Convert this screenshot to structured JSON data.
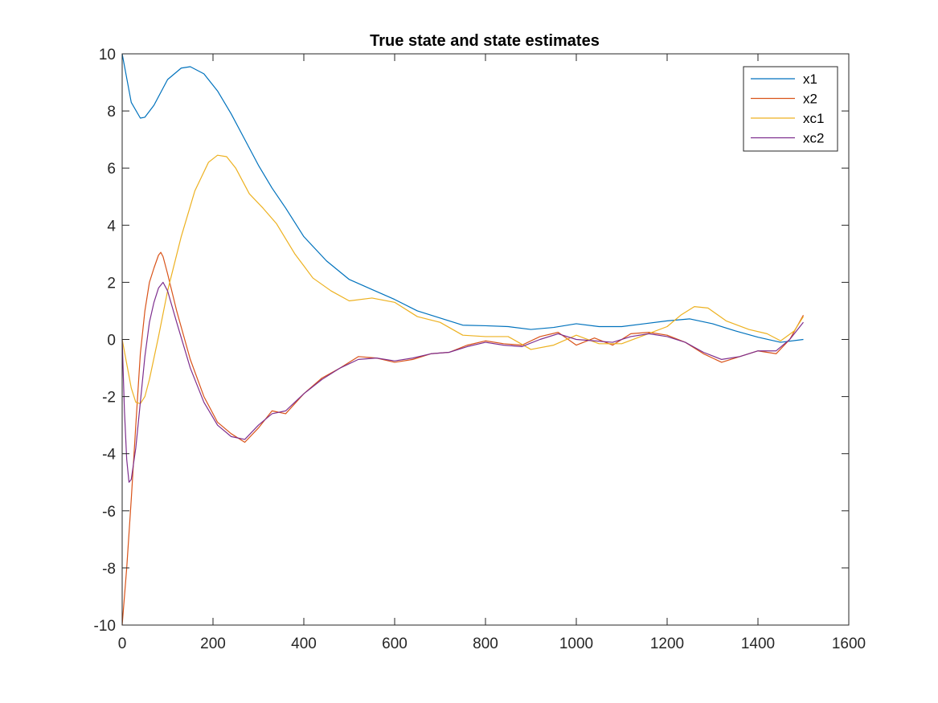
{
  "chart_data": {
    "type": "line",
    "title": "True state and state estimates",
    "xlabel": "",
    "ylabel": "",
    "xlim": [
      0,
      1600
    ],
    "ylim": [
      -10,
      10
    ],
    "xticks": [
      0,
      200,
      400,
      600,
      800,
      1000,
      1200,
      1400,
      1600
    ],
    "yticks": [
      -10,
      -8,
      -6,
      -4,
      -2,
      0,
      2,
      4,
      6,
      8,
      10
    ],
    "grid": false,
    "legend_position": "top-right",
    "series": [
      {
        "name": "x1",
        "color": "#0072BD",
        "x": [
          0,
          20,
          40,
          50,
          70,
          100,
          130,
          150,
          180,
          210,
          240,
          270,
          300,
          330,
          360,
          400,
          450,
          500,
          550,
          600,
          650,
          700,
          750,
          800,
          850,
          900,
          950,
          1000,
          1050,
          1100,
          1150,
          1200,
          1250,
          1300,
          1350,
          1400,
          1450,
          1500
        ],
        "y": [
          10,
          8.3,
          7.75,
          7.78,
          8.2,
          9.1,
          9.5,
          9.55,
          9.3,
          8.7,
          7.9,
          7.0,
          6.1,
          5.3,
          4.6,
          3.6,
          2.75,
          2.1,
          1.75,
          1.4,
          1.0,
          0.75,
          0.5,
          0.48,
          0.45,
          0.35,
          0.42,
          0.55,
          0.45,
          0.45,
          0.55,
          0.65,
          0.72,
          0.55,
          0.3,
          0.08,
          -0.1,
          0.0
        ]
      },
      {
        "name": "x2",
        "color": "#D95319",
        "x": [
          0,
          10,
          20,
          30,
          40,
          50,
          60,
          70,
          80,
          85,
          90,
          100,
          120,
          150,
          180,
          210,
          240,
          270,
          300,
          330,
          360,
          400,
          440,
          480,
          520,
          560,
          600,
          640,
          680,
          720,
          760,
          800,
          840,
          880,
          920,
          960,
          1000,
          1040,
          1080,
          1120,
          1160,
          1200,
          1240,
          1280,
          1320,
          1360,
          1400,
          1440,
          1470,
          1500
        ],
        "y": [
          -10,
          -8.0,
          -5.6,
          -3.0,
          -0.5,
          1.0,
          2.0,
          2.5,
          2.95,
          3.05,
          2.9,
          2.3,
          1.0,
          -0.7,
          -2.0,
          -2.9,
          -3.3,
          -3.6,
          -3.1,
          -2.5,
          -2.6,
          -1.9,
          -1.35,
          -1.0,
          -0.6,
          -0.65,
          -0.8,
          -0.7,
          -0.5,
          -0.45,
          -0.2,
          -0.05,
          -0.15,
          -0.2,
          0.1,
          0.25,
          -0.2,
          0.05,
          -0.2,
          0.2,
          0.25,
          0.15,
          -0.1,
          -0.5,
          -0.8,
          -0.6,
          -0.4,
          -0.5,
          0.0,
          0.85
        ]
      },
      {
        "name": "xc1",
        "color": "#EDB120",
        "x": [
          0,
          20,
          30,
          40,
          50,
          60,
          80,
          100,
          130,
          160,
          190,
          210,
          230,
          250,
          280,
          310,
          340,
          380,
          420,
          460,
          500,
          550,
          600,
          650,
          700,
          750,
          800,
          850,
          900,
          950,
          1000,
          1050,
          1100,
          1150,
          1200,
          1230,
          1260,
          1290,
          1330,
          1380,
          1420,
          1450,
          1480,
          1500
        ],
        "y": [
          0,
          -1.7,
          -2.2,
          -2.25,
          -2.0,
          -1.4,
          0.1,
          1.7,
          3.6,
          5.2,
          6.2,
          6.45,
          6.4,
          6.0,
          5.1,
          4.6,
          4.05,
          3.0,
          2.15,
          1.7,
          1.35,
          1.45,
          1.3,
          0.8,
          0.6,
          0.15,
          0.1,
          0.1,
          -0.35,
          -0.2,
          0.15,
          -0.15,
          -0.15,
          0.15,
          0.45,
          0.85,
          1.15,
          1.1,
          0.65,
          0.35,
          0.2,
          -0.05,
          0.3,
          0.8
        ]
      },
      {
        "name": "xc2",
        "color": "#7E2F8E",
        "x": [
          0,
          5,
          10,
          15,
          20,
          30,
          40,
          50,
          60,
          70,
          80,
          90,
          100,
          120,
          150,
          180,
          210,
          240,
          270,
          300,
          330,
          360,
          400,
          440,
          480,
          520,
          560,
          600,
          640,
          680,
          720,
          760,
          800,
          840,
          880,
          920,
          960,
          1000,
          1040,
          1080,
          1120,
          1160,
          1200,
          1240,
          1280,
          1320,
          1360,
          1400,
          1440,
          1470,
          1500
        ],
        "y": [
          0,
          -2.5,
          -4.2,
          -5.0,
          -4.9,
          -3.8,
          -2.2,
          -0.6,
          0.6,
          1.3,
          1.8,
          2.0,
          1.7,
          0.6,
          -1.0,
          -2.2,
          -3.0,
          -3.4,
          -3.5,
          -3.0,
          -2.6,
          -2.5,
          -1.9,
          -1.4,
          -1.0,
          -0.7,
          -0.65,
          -0.75,
          -0.65,
          -0.5,
          -0.45,
          -0.25,
          -0.1,
          -0.2,
          -0.25,
          0.0,
          0.2,
          0.0,
          -0.05,
          -0.1,
          0.1,
          0.2,
          0.1,
          -0.1,
          -0.45,
          -0.7,
          -0.6,
          -0.4,
          -0.4,
          0.0,
          0.6
        ]
      }
    ]
  }
}
